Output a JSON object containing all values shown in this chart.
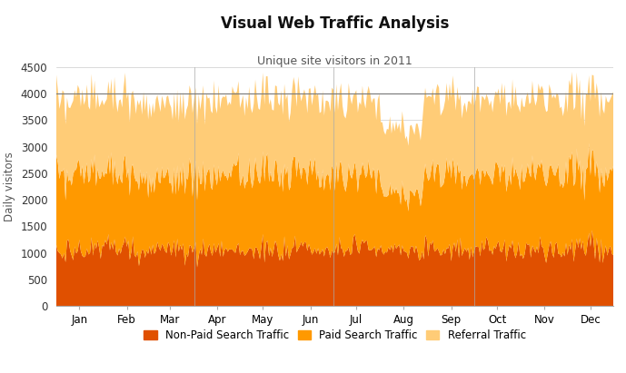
{
  "title": "Visual Web Traffic Analysis",
  "subtitle": "Unique site visitors in 2011",
  "ylabel": "Daily visitors",
  "colors": {
    "non_paid": "#E05000",
    "paid": "#FF9900",
    "referral": "#FFCC77"
  },
  "ylim": [
    0,
    4500
  ],
  "yticks": [
    0,
    500,
    1000,
    1500,
    2000,
    2500,
    3000,
    3500,
    4000,
    4500
  ],
  "hline_y": 4000,
  "legend_labels": [
    "Non-Paid Search Traffic",
    "Paid Search Traffic",
    "Referral Traffic"
  ],
  "months": [
    "Jan",
    "Feb",
    "Mar",
    "Apr",
    "May",
    "Jun",
    "Jul",
    "Aug",
    "Sep",
    "Oct",
    "Nov",
    "Dec"
  ],
  "month_days": [
    15,
    46,
    74,
    105,
    135,
    166,
    196,
    227,
    258,
    288,
    319,
    349
  ],
  "vline_days": [
    90,
    181,
    273
  ],
  "background_color": "#ffffff",
  "grid_color": "#cccccc",
  "non_paid_base": 950,
  "non_paid_noise": 220,
  "paid_base": 1250,
  "paid_noise": 280,
  "referral_base": 1350,
  "referral_noise": 180,
  "seed": 7
}
